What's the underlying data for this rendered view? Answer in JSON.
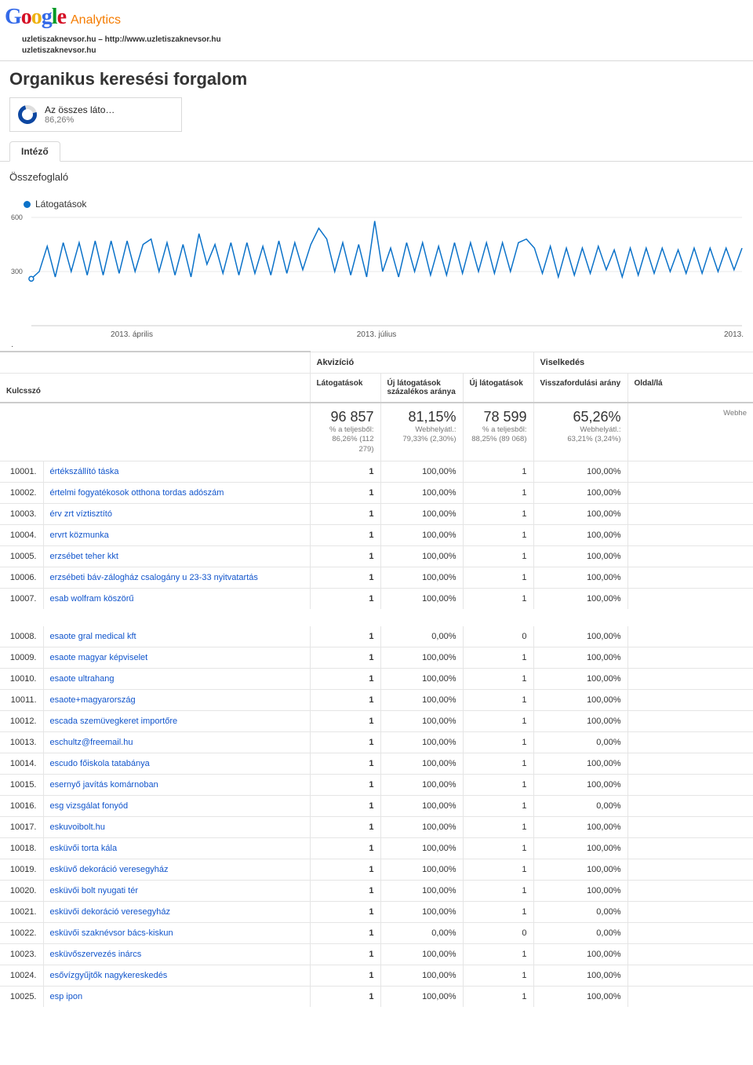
{
  "logo": {
    "google": "Google",
    "analytics": "Analytics"
  },
  "site": {
    "line1": "uzletiszaknevsor.hu – http://www.uzletiszaknevsor.hu",
    "line2": "uzletiszaknevsor.hu"
  },
  "page_title": "Organikus keresési forgalom",
  "summary": {
    "title": "Az összes láto…",
    "pct": "86,26%"
  },
  "tab_label": "Intéző",
  "section_label": "Összefoglaló",
  "legend": "Látogatások",
  "chart": {
    "y_ticks": [
      "600",
      "300"
    ],
    "x_ticks": [
      "2013. április",
      "2013. július",
      "2013."
    ],
    "line_color": "#0b72c9",
    "grid_color": "#e8e8e8",
    "values": [
      260,
      300,
      440,
      270,
      460,
      300,
      460,
      280,
      470,
      280,
      470,
      290,
      470,
      300,
      450,
      480,
      300,
      460,
      280,
      450,
      270,
      510,
      340,
      450,
      290,
      460,
      280,
      460,
      290,
      440,
      280,
      470,
      290,
      460,
      310,
      450,
      540,
      480,
      300,
      460,
      280,
      450,
      270,
      580,
      300,
      430,
      270,
      460,
      300,
      460,
      280,
      440,
      280,
      460,
      290,
      460,
      300,
      460,
      290,
      460,
      300,
      460,
      480,
      430,
      290,
      440,
      270,
      430,
      280,
      430,
      290,
      440,
      310,
      420,
      270,
      430,
      280,
      430,
      290,
      430,
      300,
      420,
      290,
      430,
      290,
      430,
      300,
      430,
      310,
      430
    ],
    "ylim": [
      0,
      600
    ]
  },
  "table": {
    "group_akv": "Akvizíció",
    "group_visel": "Viselkedés",
    "headers": {
      "kulcsszo": "Kulcsszó",
      "latog": "Látogatások",
      "uj_pct": "Új látogatások százalékos aránya",
      "uj": "Új látogatások",
      "vissza": "Visszafordulási arány",
      "oldal": "Oldal/lá"
    },
    "metrics": {
      "latog": {
        "big": "96 857",
        "sub1": "% a teljesből:",
        "sub2": "86,26% (112 279)"
      },
      "uj_pct": {
        "big": "81,15%",
        "sub1": "Webhelyátl.:",
        "sub2": "79,33% (2,30%)"
      },
      "uj": {
        "big": "78 599",
        "sub1": "% a teljesből:",
        "sub2": "88,25% (89 068)"
      },
      "vissza": {
        "big": "65,26%",
        "sub1": "Webhelyátl.:",
        "sub2": "63,21% (3,24%)"
      },
      "oldal": {
        "big": "",
        "sub1": "Webhe",
        "sub2": ""
      }
    },
    "rows": [
      {
        "n": "10001.",
        "kw": "értékszállító táska",
        "v": "1",
        "p": "100,00%",
        "u": "1",
        "b": "100,00%"
      },
      {
        "n": "10002.",
        "kw": "értelmi fogyatékosok otthona tordas adószám",
        "v": "1",
        "p": "100,00%",
        "u": "1",
        "b": "100,00%"
      },
      {
        "n": "10003.",
        "kw": "érv zrt víztisztító",
        "v": "1",
        "p": "100,00%",
        "u": "1",
        "b": "100,00%"
      },
      {
        "n": "10004.",
        "kw": "ervrt közmunka",
        "v": "1",
        "p": "100,00%",
        "u": "1",
        "b": "100,00%"
      },
      {
        "n": "10005.",
        "kw": "erzsébet teher kkt",
        "v": "1",
        "p": "100,00%",
        "u": "1",
        "b": "100,00%"
      },
      {
        "n": "10006.",
        "kw": "erzsébeti báv-zálogház csalogány u 23-33 nyitvatartás",
        "v": "1",
        "p": "100,00%",
        "u": "1",
        "b": "100,00%"
      },
      {
        "n": "10007.",
        "kw": "esab wolfram köszörű",
        "v": "1",
        "p": "100,00%",
        "u": "1",
        "b": "100,00%"
      },
      {
        "n": "10008.",
        "kw": "esaote gral medical kft",
        "v": "1",
        "p": "0,00%",
        "u": "0",
        "b": "100,00%"
      },
      {
        "n": "10009.",
        "kw": "esaote magyar képviselet",
        "v": "1",
        "p": "100,00%",
        "u": "1",
        "b": "100,00%"
      },
      {
        "n": "10010.",
        "kw": "esaote ultrahang",
        "v": "1",
        "p": "100,00%",
        "u": "1",
        "b": "100,00%"
      },
      {
        "n": "10011.",
        "kw": "esaote+magyarország",
        "v": "1",
        "p": "100,00%",
        "u": "1",
        "b": "100,00%"
      },
      {
        "n": "10012.",
        "kw": "escada szemüvegkeret importőre",
        "v": "1",
        "p": "100,00%",
        "u": "1",
        "b": "100,00%"
      },
      {
        "n": "10013.",
        "kw": "eschultz@freemail.hu",
        "v": "1",
        "p": "100,00%",
        "u": "1",
        "b": "0,00%"
      },
      {
        "n": "10014.",
        "kw": "escudo főiskola tatabánya",
        "v": "1",
        "p": "100,00%",
        "u": "1",
        "b": "100,00%"
      },
      {
        "n": "10015.",
        "kw": "esernyő javítás komárnoban",
        "v": "1",
        "p": "100,00%",
        "u": "1",
        "b": "100,00%"
      },
      {
        "n": "10016.",
        "kw": "esg vizsgálat fonyód",
        "v": "1",
        "p": "100,00%",
        "u": "1",
        "b": "0,00%"
      },
      {
        "n": "10017.",
        "kw": "eskuvoibolt.hu",
        "v": "1",
        "p": "100,00%",
        "u": "1",
        "b": "100,00%"
      },
      {
        "n": "10018.",
        "kw": "esküvői torta kála",
        "v": "1",
        "p": "100,00%",
        "u": "1",
        "b": "100,00%"
      },
      {
        "n": "10019.",
        "kw": "esküvő dekoráció veresegyház",
        "v": "1",
        "p": "100,00%",
        "u": "1",
        "b": "100,00%"
      },
      {
        "n": "10020.",
        "kw": "esküvői bolt nyugati tér",
        "v": "1",
        "p": "100,00%",
        "u": "1",
        "b": "100,00%"
      },
      {
        "n": "10021.",
        "kw": "esküvői dekoráció veresegyház",
        "v": "1",
        "p": "100,00%",
        "u": "1",
        "b": "0,00%"
      },
      {
        "n": "10022.",
        "kw": "esküvői szaknévsor bács-kiskun",
        "v": "1",
        "p": "0,00%",
        "u": "0",
        "b": "0,00%"
      },
      {
        "n": "10023.",
        "kw": "esküvőszervezés inárcs",
        "v": "1",
        "p": "100,00%",
        "u": "1",
        "b": "100,00%"
      },
      {
        "n": "10024.",
        "kw": "esővízgyűjtők nagykereskedés",
        "v": "1",
        "p": "100,00%",
        "u": "1",
        "b": "100,00%"
      },
      {
        "n": "10025.",
        "kw": "esp ipon",
        "v": "1",
        "p": "100,00%",
        "u": "1",
        "b": "100,00%"
      }
    ]
  }
}
